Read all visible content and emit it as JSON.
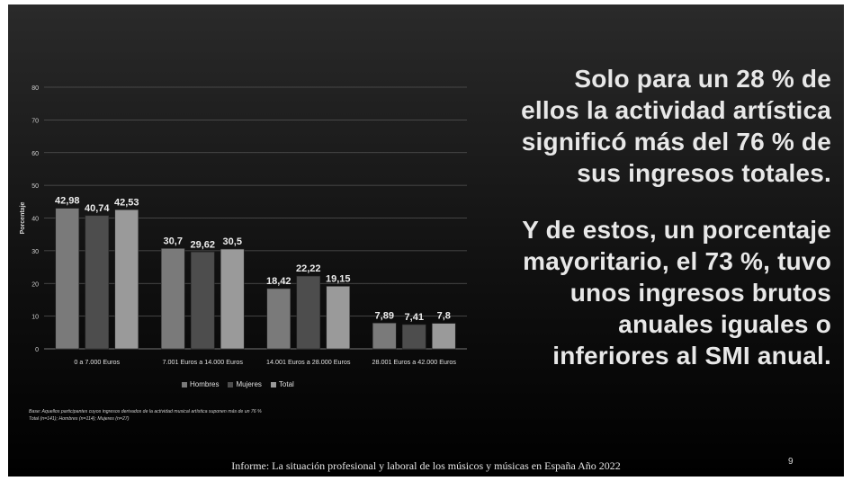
{
  "headline": {
    "line1": "Solo para un 28 % de",
    "line2": "ellos la actividad artística",
    "line3": "significó más del 76 % de",
    "line4": "sus ingresos totales.",
    "line5": "Y de estos, un porcentaje",
    "line6": "mayoritario, el 73 %, tuvo",
    "line7": "unos ingresos brutos",
    "line8": "anuales iguales o",
    "line9": "inferiores al SMI anual."
  },
  "note": {
    "line1": "Base: Aquellos participantes cuyos ingresos derivados de la actividad musical artística suponen más de un 76 %",
    "line2": "Total (n=141); Hombres (n=114); Mujeres (n=27)"
  },
  "footer": "Informe: La situación profesional y laboral de los músicos y músicas en España Año 2022",
  "page_number": "9",
  "colors": {
    "Hombres": "#7a7a7a",
    "Mujeres": "#4d4d4d",
    "Total": "#9a9a9a"
  },
  "chart_data": {
    "type": "bar",
    "ylabel": "Porcentaje",
    "xlabel": "",
    "ylim": [
      0,
      80
    ],
    "yticks": [
      0,
      10,
      20,
      30,
      40,
      50,
      60,
      70,
      80
    ],
    "grid": true,
    "legend_position": "bottom",
    "categories": [
      "0 a 7.000 Euros",
      "7.001 Euros a 14.000 Euros",
      "14.001 Euros a 28.000 Euros",
      "28.001 Euros a 42.000 Euros"
    ],
    "series": [
      {
        "name": "Hombres",
        "values": [
          42.98,
          30.7,
          18.42,
          7.89
        ],
        "labels": [
          "42,98",
          "30,7",
          "18,42",
          "7,89"
        ]
      },
      {
        "name": "Mujeres",
        "values": [
          40.74,
          29.62,
          22.22,
          7.41
        ],
        "labels": [
          "40,74",
          "29,62",
          "22,22",
          "7,41"
        ]
      },
      {
        "name": "Total",
        "values": [
          42.53,
          30.5,
          19.15,
          7.8
        ],
        "labels": [
          "42,53",
          "30,5",
          "19,15",
          "7,8"
        ]
      }
    ]
  }
}
